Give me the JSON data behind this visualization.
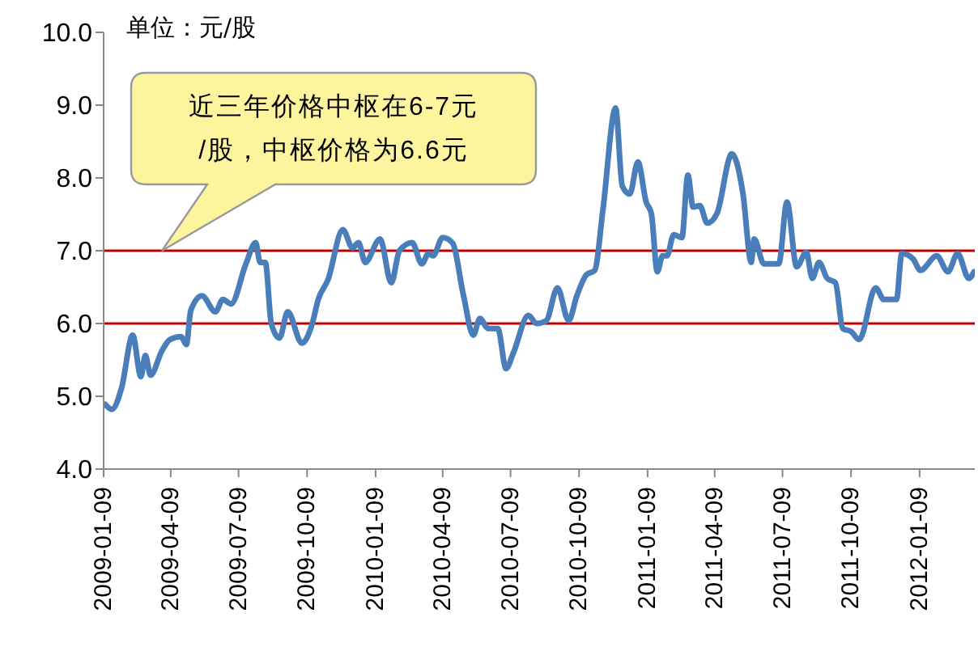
{
  "chart_data": {
    "type": "line",
    "annotations": [
      "单位：元/股",
      "近三年价格中枢在6-7元\n/股，中枢价格为6.6元"
    ],
    "x": [
      "2009-01-11",
      "2009-01-20",
      "2009-02-02",
      "2009-02-17",
      "2009-02-28",
      "2009-03-06",
      "2009-03-13",
      "2009-03-28",
      "2009-04-08",
      "2009-04-23",
      "2009-04-30",
      "2009-05-06",
      "2009-05-21",
      "2009-06-08",
      "2009-06-18",
      "2009-06-29",
      "2009-07-19",
      "2009-08-01",
      "2009-08-07",
      "2009-08-14",
      "2009-08-22",
      "2009-09-02",
      "2009-09-13",
      "2009-10-02",
      "2009-10-16",
      "2009-10-24",
      "2009-11-06",
      "2009-11-26",
      "2009-12-09",
      "2009-12-17",
      "2009-12-26",
      "2010-01-15",
      "2010-01-30",
      "2010-02-10",
      "2010-02-27",
      "2010-03-12",
      "2010-03-21",
      "2010-03-27",
      "2010-04-09",
      "2010-04-22",
      "2010-05-07",
      "2010-05-20",
      "2010-05-29",
      "2010-06-09",
      "2010-06-22",
      "2010-07-03",
      "2010-07-13",
      "2010-08-02",
      "2010-08-13",
      "2010-08-26",
      "2010-09-10",
      "2010-09-25",
      "2010-10-06",
      "2010-10-19",
      "2010-10-30",
      "2010-11-10",
      "2010-11-27",
      "2010-12-06",
      "2010-12-16",
      "2010-12-27",
      "2011-01-07",
      "2011-01-14",
      "2011-01-22",
      "2011-01-29",
      "2011-02-04",
      "2011-02-13",
      "2011-02-24",
      "2011-03-04",
      "2011-03-11",
      "2011-03-20",
      "2011-03-30",
      "2011-04-12",
      "2011-05-02",
      "2011-05-17",
      "2011-05-28",
      "2011-06-01",
      "2011-06-14",
      "2011-07-04",
      "2011-07-15",
      "2011-07-28",
      "2011-08-10",
      "2011-08-18",
      "2011-08-27",
      "2011-09-07",
      "2011-09-18",
      "2011-09-28",
      "2011-10-09",
      "2011-10-20",
      "2011-11-11",
      "2011-11-22",
      "2011-12-09",
      "2011-12-16",
      "2011-12-31",
      "2012-01-10",
      "2012-02-01",
      "2012-02-16",
      "2012-02-29",
      "2012-03-15",
      "2012-03-22"
    ],
    "series": [
      {
        "color": "#4a7ebb",
        "values": [
          4.89,
          4.82,
          5.11,
          5.84,
          5.27,
          5.56,
          5.29,
          5.62,
          5.78,
          5.82,
          5.71,
          6.18,
          6.38,
          6.16,
          6.33,
          6.27,
          6.82,
          7.11,
          6.84,
          6.84,
          6.0,
          5.8,
          6.16,
          5.73,
          6.0,
          6.33,
          6.6,
          7.29,
          7.04,
          7.11,
          6.84,
          7.16,
          6.56,
          7.0,
          7.11,
          6.82,
          6.96,
          6.93,
          7.18,
          7.11,
          6.38,
          5.84,
          6.07,
          5.93,
          5.93,
          5.38,
          5.6,
          6.11,
          6.0,
          6.04,
          6.49,
          6.04,
          6.38,
          6.67,
          6.73,
          7.56,
          8.96,
          7.89,
          7.78,
          8.22,
          7.67,
          7.51,
          6.71,
          6.93,
          6.93,
          7.22,
          7.18,
          8.04,
          7.6,
          7.62,
          7.38,
          7.51,
          8.33,
          7.78,
          6.84,
          7.16,
          6.82,
          6.82,
          7.67,
          6.78,
          6.98,
          6.62,
          6.84,
          6.62,
          6.56,
          5.93,
          5.89,
          5.78,
          6.49,
          6.33,
          6.33,
          6.96,
          6.89,
          6.73,
          6.93,
          6.71,
          6.96,
          6.62,
          6.71
        ]
      }
    ],
    "xlim": [
      "2009-01-09",
      "2012-03-23"
    ],
    "xticks": [
      "2009-01-09",
      "2009-04-09",
      "2009-07-09",
      "2009-10-09",
      "2010-01-09",
      "2010-04-09",
      "2010-07-09",
      "2010-10-09",
      "2011-01-09",
      "2011-04-09",
      "2011-07-09",
      "2011-10-09",
      "2012-01-09"
    ],
    "ylim": [
      4,
      10
    ],
    "yticks": [
      {
        "value": 4,
        "label": "4.0"
      },
      {
        "value": 5,
        "label": "5.0"
      },
      {
        "value": 6,
        "label": "6.0"
      },
      {
        "value": 7,
        "label": "7.0"
      },
      {
        "value": 8,
        "label": "8.0"
      },
      {
        "value": 9,
        "label": "9.0"
      },
      {
        "value": 10,
        "label": "10.0"
      }
    ],
    "ref_lines": [
      {
        "axis": "y",
        "value": 7,
        "color": "#c00000"
      },
      {
        "axis": "y",
        "value": 6,
        "color": "#c00000"
      }
    ],
    "grid": false,
    "legend": false,
    "marker": "none",
    "line_style": "solid"
  }
}
